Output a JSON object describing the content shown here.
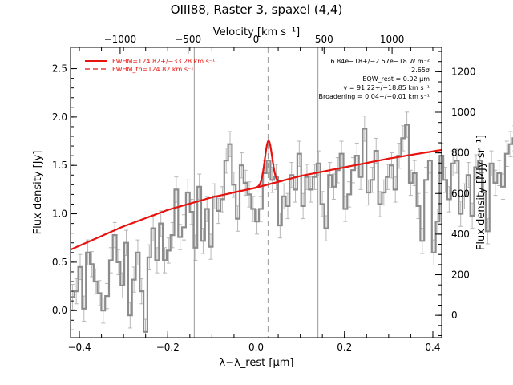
{
  "chart_data": {
    "type": "line",
    "title": "OIII88, Raster 3, spaxel (4,4)",
    "xlabel": "λ−λ_rest [μm]",
    "ylabel_left": "Flux density [Jy]",
    "ylabel_right": "Flux density [MJy sr⁻¹]",
    "xlabel_top": "Velocity [km s⁻¹]",
    "xlim": [
      -0.42,
      0.42
    ],
    "ylim": [
      -0.28,
      2.72
    ],
    "ylim_right": [
      -110,
      1320
    ],
    "xlim_top": [
      -1365,
      1365
    ],
    "x_ticks": [
      {
        "v": -0.4,
        "label": "−0.4"
      },
      {
        "v": -0.2,
        "label": "−0.2"
      },
      {
        "v": 0.0,
        "label": "0.0"
      },
      {
        "v": 0.2,
        "label": "0.2"
      },
      {
        "v": 0.4,
        "label": "0.4"
      }
    ],
    "y_ticks": [
      {
        "v": 0.0,
        "label": "0.0"
      },
      {
        "v": 0.5,
        "label": "0.5"
      },
      {
        "v": 1.0,
        "label": "1.0"
      },
      {
        "v": 1.5,
        "label": "1.5"
      },
      {
        "v": 2.0,
        "label": "2.0"
      },
      {
        "v": 2.5,
        "label": "2.5"
      }
    ],
    "y_ticks_right": [
      {
        "v": 0,
        "label": "0"
      },
      {
        "v": 200,
        "label": "200"
      },
      {
        "v": 400,
        "label": "400"
      },
      {
        "v": 600,
        "label": "600"
      },
      {
        "v": 800,
        "label": "800"
      },
      {
        "v": 1000,
        "label": "1000"
      },
      {
        "v": 1200,
        "label": "1200"
      }
    ],
    "x_ticks_top": [
      {
        "v": -1000,
        "label": "−1000"
      },
      {
        "v": -500,
        "label": "−500"
      },
      {
        "v": 0,
        "label": "0"
      },
      {
        "v": 500,
        "label": "500"
      },
      {
        "v": 1000,
        "label": "1000"
      }
    ],
    "vertical_lines": [
      {
        "x": -0.14,
        "style": "solid"
      },
      {
        "x": 0.0,
        "style": "solid"
      },
      {
        "x": 0.14,
        "style": "solid"
      },
      {
        "x": 0.027,
        "style": "dashed"
      }
    ],
    "legend": {
      "placement": "top-left",
      "entries": [
        {
          "label": "FWHM=124.82+/−33.28 km s⁻¹",
          "style": "solid"
        },
        {
          "label": "FWHM_th=124.82 km s⁻¹",
          "style": "dashed"
        }
      ]
    },
    "annotations": [
      "6.84e−18+/−2.57e−18 W m⁻²",
      "2.65σ",
      "EQW_rest = 0.02 μm",
      "v = 91.22+/−18.85 km s⁻¹",
      "Broadening = 0.04+/−0.01 km s⁻¹"
    ],
    "series": [
      {
        "kind": "histogram",
        "x_start": -0.42,
        "x_step": 0.0087,
        "y": [
          0.14,
          0.2,
          0.45,
          0.02,
          0.6,
          0.48,
          0.3,
          0.18,
          0.0,
          0.15,
          0.52,
          0.78,
          0.5,
          0.26,
          0.7,
          -0.05,
          0.32,
          0.6,
          0.2,
          -0.22,
          0.55,
          0.85,
          0.52,
          0.9,
          0.52,
          0.62,
          0.78,
          1.25,
          0.76,
          0.86,
          1.22,
          1.02,
          0.65,
          1.28,
          0.72,
          1.05,
          0.66,
          1.18,
          1.03,
          1.15,
          1.55,
          1.72,
          1.3,
          0.95,
          1.5,
          1.32,
          1.2,
          1.05,
          0.92,
          1.05,
          1.42,
          1.55,
          1.35,
          1.38,
          0.88,
          1.18,
          1.08,
          1.4,
          1.25,
          1.62,
          1.08,
          1.38,
          1.25,
          1.38,
          1.52,
          1.1,
          0.85,
          1.4,
          1.28,
          1.45,
          1.62,
          1.05,
          1.2,
          1.45,
          1.6,
          1.38,
          1.88,
          1.22,
          1.35,
          1.65,
          1.1,
          1.22,
          1.38,
          1.5,
          1.25,
          1.6,
          1.78,
          1.92,
          1.32,
          1.42,
          1.08,
          0.72,
          1.35,
          1.55,
          0.6,
          0.92,
          1.6,
          1.35,
          1.15,
          1.52,
          1.55,
          1.0,
          1.18,
          1.4,
          0.98,
          1.48,
          1.55,
          1.22,
          0.82,
          1.52,
          1.32,
          1.42,
          1.28,
          1.62,
          1.72,
          1.78,
          1.62,
          1.35,
          1.85,
          1.55,
          1.78,
          1.45,
          1.98,
          1.65,
          1.72,
          1.55,
          1.98,
          1.48,
          1.92,
          1.62,
          1.78,
          1.62,
          1.72,
          2.05,
          1.85,
          1.55,
          2.05,
          1.38,
          1.88,
          1.52,
          1.78,
          1.65,
          1.88,
          2.05,
          1.92,
          2.15,
          1.75,
          2.22,
          2.0,
          2.48,
          2.72
        ],
        "errors": 0.13
      },
      {
        "kind": "model_continuum",
        "x": [
          -0.42,
          -0.3,
          -0.2,
          -0.1,
          0.0,
          0.1,
          0.2,
          0.3,
          0.42
        ],
        "y": [
          0.63,
          0.87,
          1.04,
          1.17,
          1.27,
          1.39,
          1.48,
          1.57,
          1.66
        ]
      },
      {
        "kind": "model_gaussian",
        "center": 0.028,
        "amplitude": 0.45,
        "sigma": 0.0082
      }
    ]
  }
}
